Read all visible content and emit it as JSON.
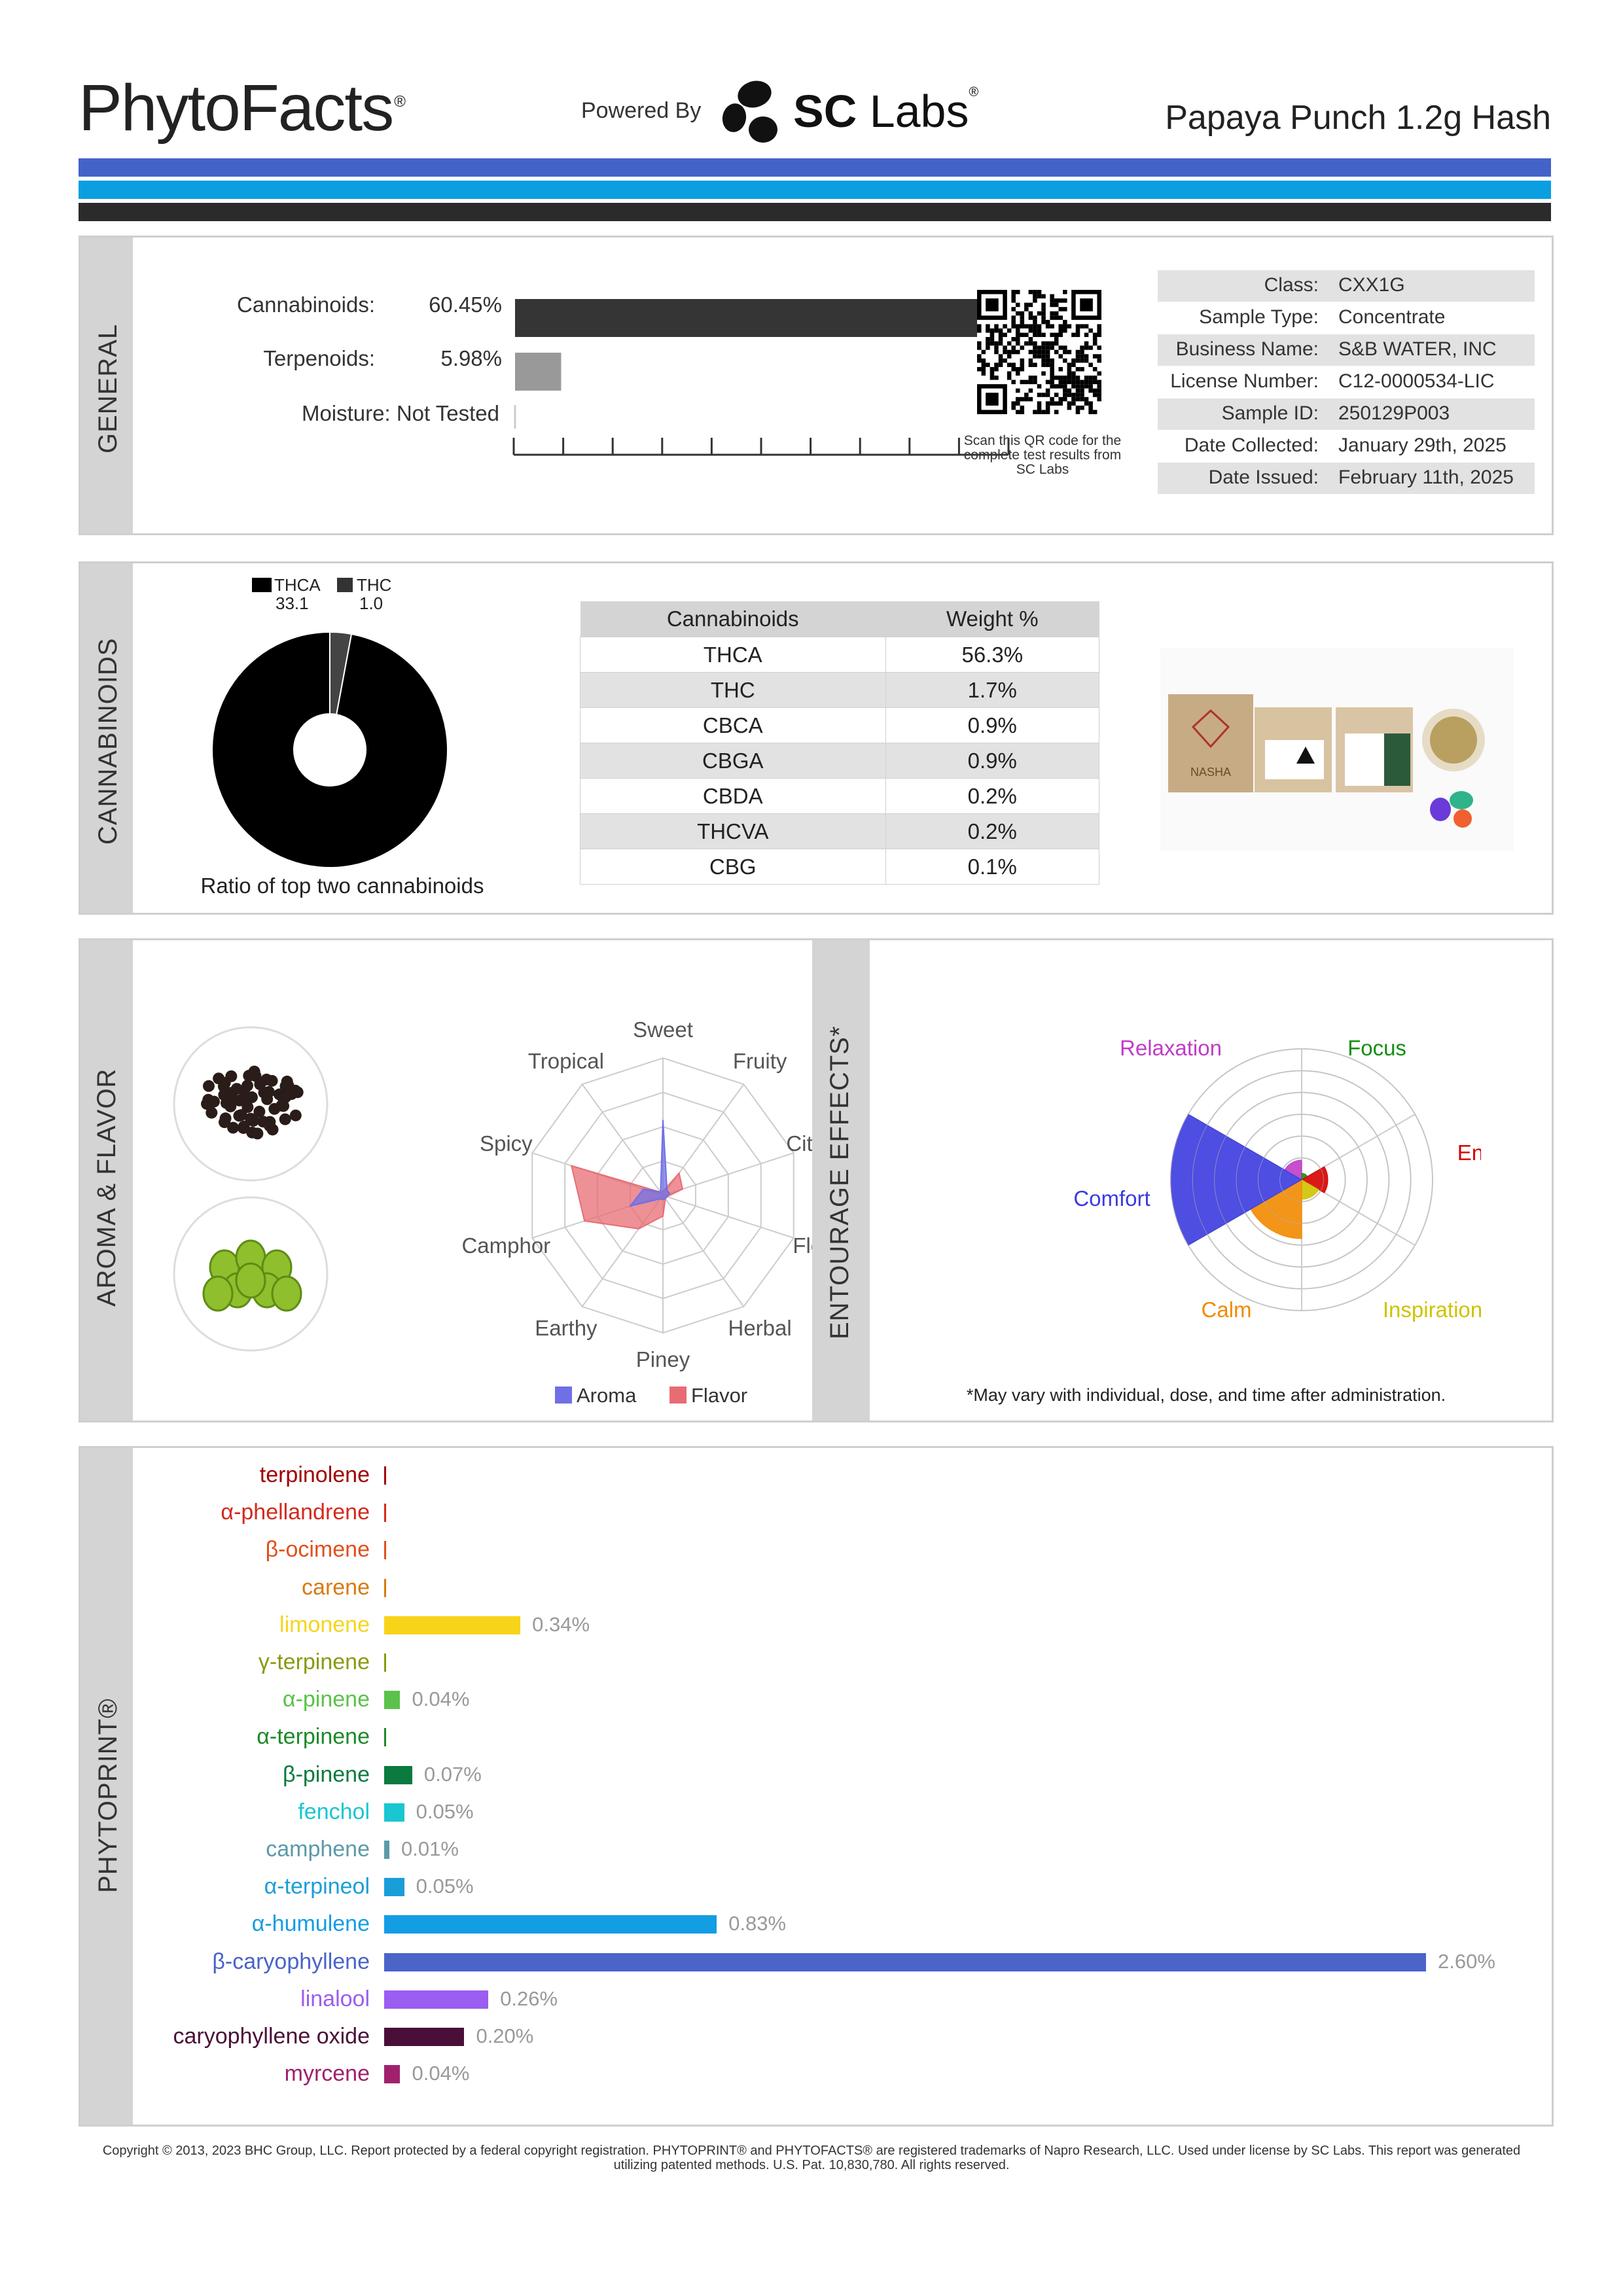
{
  "header": {
    "brand": "PhytoFacts",
    "brand_mark": "®",
    "powered_by": "Powered By",
    "lab_name_bold": "SC",
    "lab_name": " Labs",
    "lab_mark": "®",
    "product": "Papaya Punch 1.2g Hash",
    "stripe_colors": [
      "#4463c9",
      "#0b9fe1",
      "#2b2b2b"
    ]
  },
  "general": {
    "section_label": "GENERAL",
    "rows": [
      {
        "label": "Cannabinoids:",
        "value": "60.45%",
        "fraction": 0.6045,
        "color": "#353535"
      },
      {
        "label": "Terpenoids:",
        "value": "5.98%",
        "fraction": 0.0598,
        "color": "#999999"
      },
      {
        "label": "Moisture:",
        "value": "Not Tested",
        "fraction": 0,
        "color": "#cccccc"
      }
    ],
    "qr_caption": "Scan this QR code for the complete test results from SC Labs",
    "info": [
      {
        "key": "Class:",
        "value": "CXX1G"
      },
      {
        "key": "Sample Type:",
        "value": "Concentrate"
      },
      {
        "key": "Business Name:",
        "value": "S&B WATER, INC"
      },
      {
        "key": "License Number:",
        "value": "C12-0000534-LIC"
      },
      {
        "key": "Sample ID:",
        "value": "250129P003"
      },
      {
        "key": "Date Collected:",
        "value": "January 29th, 2025"
      },
      {
        "key": "Date Issued:",
        "value": "February 11th, 2025"
      }
    ]
  },
  "cannabinoids": {
    "section_label": "CANNABINOIDS",
    "legend": [
      {
        "name": "THCA",
        "value": "33.1",
        "color": "#000000"
      },
      {
        "name": "THC",
        "value": "1.0",
        "color": "#333333"
      }
    ],
    "ratio_caption": "Ratio of top two cannabinoids",
    "table_headers": [
      "Cannabinoids",
      "Weight %"
    ],
    "table_rows": [
      [
        "THCA",
        "56.3%"
      ],
      [
        "THC",
        "1.7%"
      ],
      [
        "CBCA",
        "0.9%"
      ],
      [
        "CBGA",
        "0.9%"
      ],
      [
        "CBDA",
        "0.2%"
      ],
      [
        "THCVA",
        "0.2%"
      ],
      [
        "CBG",
        "0.1%"
      ]
    ],
    "product_box_text": "NASHA"
  },
  "aroma": {
    "section_label": "AROMA & FLAVOR",
    "axes": [
      "Sweet",
      "Fruity",
      "Citrusy",
      "Floral",
      "Herbal",
      "Piney",
      "Earthy",
      "Camphor",
      "Spicy",
      "Tropical"
    ],
    "legend_aroma": "Aroma",
    "legend_flavor": "Flavor",
    "aroma_color": "#6f6fe6",
    "flavor_color": "#e86c74",
    "aroma_values": [
      0.55,
      0.05,
      0.05,
      0.03,
      0.03,
      0.03,
      0.03,
      0.25,
      0.15,
      0.03
    ],
    "flavor_values": [
      0.03,
      0.2,
      0.15,
      0.03,
      0.03,
      0.15,
      0.3,
      0.6,
      0.7,
      0.03
    ]
  },
  "entourage": {
    "section_label": "ENTOURAGE EFFECTS*",
    "labels": [
      {
        "name": "Relaxation",
        "color": "#c03cc8"
      },
      {
        "name": "Focus",
        "color": "#138f13"
      },
      {
        "name": "Energy",
        "color": "#d60000"
      },
      {
        "name": "Inspiration",
        "color": "#cfc300"
      },
      {
        "name": "Calm",
        "color": "#f28a00"
      },
      {
        "name": "Comfort",
        "color": "#3b3be0"
      }
    ],
    "values": [
      0.15,
      0.05,
      0.2,
      0.15,
      0.45,
      1.0
    ],
    "footnote": "*May vary with individual, dose, and time after administration."
  },
  "phytoprint": {
    "section_label": "PHYTOPRINT®",
    "max": 2.6,
    "terpenes": [
      {
        "name": "terpinolene",
        "value": null,
        "label": "",
        "color": "#a00000"
      },
      {
        "name": "α-phellandrene",
        "value": null,
        "label": "",
        "color": "#d42a1c"
      },
      {
        "name": "β-ocimene",
        "value": null,
        "label": "",
        "color": "#e0501c"
      },
      {
        "name": "carene",
        "value": null,
        "label": "",
        "color": "#d87a10"
      },
      {
        "name": "limonene",
        "value": 0.34,
        "label": "0.34%",
        "color": "#f7d419"
      },
      {
        "name": "γ-terpinene",
        "value": null,
        "label": "",
        "color": "#8a9a10"
      },
      {
        "name": "α-pinene",
        "value": 0.04,
        "label": "0.04%",
        "color": "#5ac24a"
      },
      {
        "name": "α-terpinene",
        "value": null,
        "label": "",
        "color": "#1b8a28"
      },
      {
        "name": "β-pinene",
        "value": 0.07,
        "label": "0.07%",
        "color": "#0a7a3e"
      },
      {
        "name": "fenchol",
        "value": 0.05,
        "label": "0.05%",
        "color": "#1ac6cf"
      },
      {
        "name": "camphene",
        "value": 0.01,
        "label": "0.01%",
        "color": "#5b9aaa"
      },
      {
        "name": "α-terpineol",
        "value": 0.05,
        "label": "0.05%",
        "color": "#1a9ed8"
      },
      {
        "name": "α-humulene",
        "value": 0.83,
        "label": "0.83%",
        "color": "#139de3"
      },
      {
        "name": "β-caryophyllene",
        "value": 2.6,
        "label": "2.60%",
        "color": "#4a64c8"
      },
      {
        "name": "linalool",
        "value": 0.26,
        "label": "0.26%",
        "color": "#9a5ef0"
      },
      {
        "name": "caryophyllene oxide",
        "value": 0.2,
        "label": "0.20%",
        "color": "#4a0f38"
      },
      {
        "name": "myrcene",
        "value": 0.04,
        "label": "0.04%",
        "color": "#a0206e"
      }
    ]
  },
  "footer": {
    "copyright": "Copyright © 2013, 2023 BHC Group, LLC. Report protected by a federal copyright registration. PHYTOPRINT® and PHYTOFACTS® are registered trademarks of Napro Research, LLC. Used under license by SC Labs. This report was generated utilizing patented methods. U.S. Pat. 10,830,780. All rights reserved."
  }
}
